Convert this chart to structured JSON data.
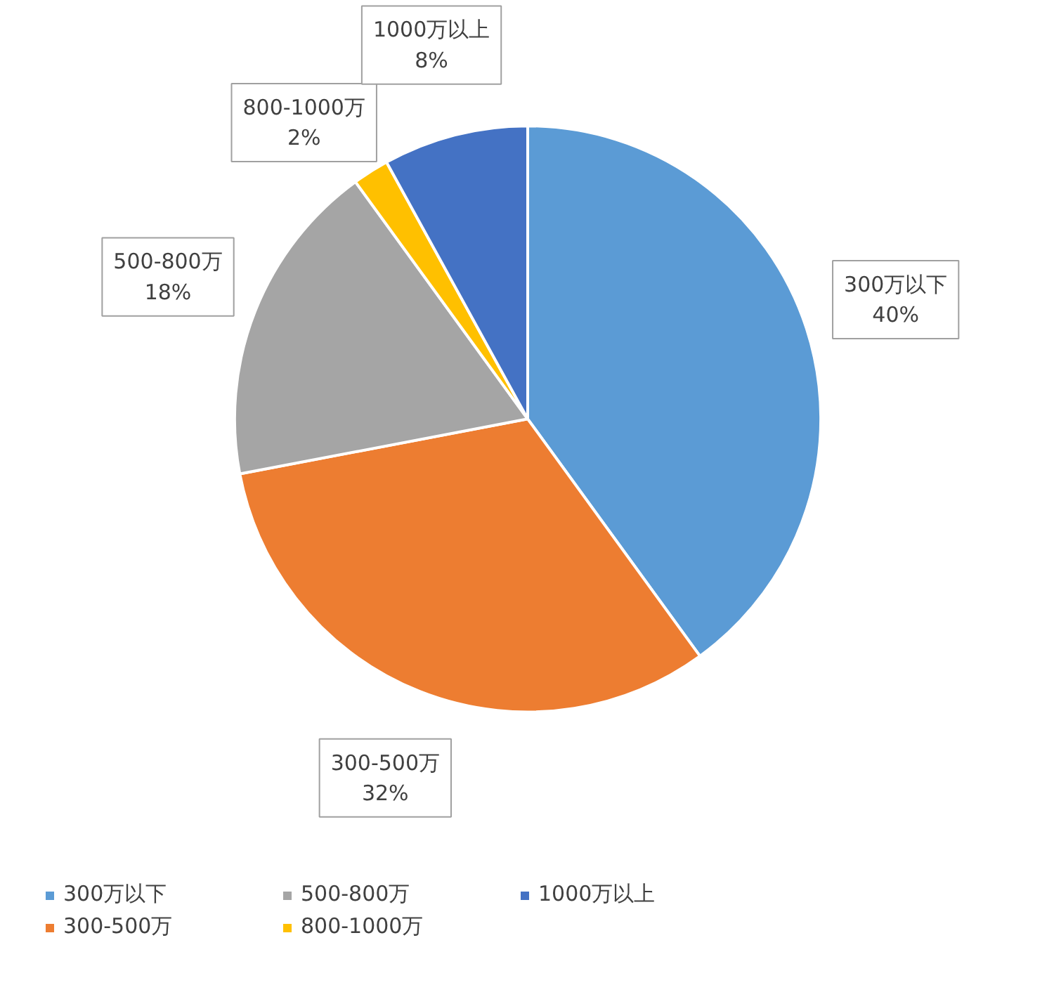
{
  "chart_data": {
    "type": "pie",
    "categories": [
      "300万以下",
      "300-500万",
      "500-800万",
      "800-1000万",
      "1000万以上"
    ],
    "values": [
      40,
      32,
      18,
      2,
      8
    ],
    "colors": [
      "#5b9bd5",
      "#ed7d31",
      "#a5a5a5",
      "#ffc000",
      "#4472c4"
    ],
    "value_labels": [
      "40%",
      "32%",
      "18%",
      "2%",
      "8%"
    ],
    "legend": "bottom"
  }
}
